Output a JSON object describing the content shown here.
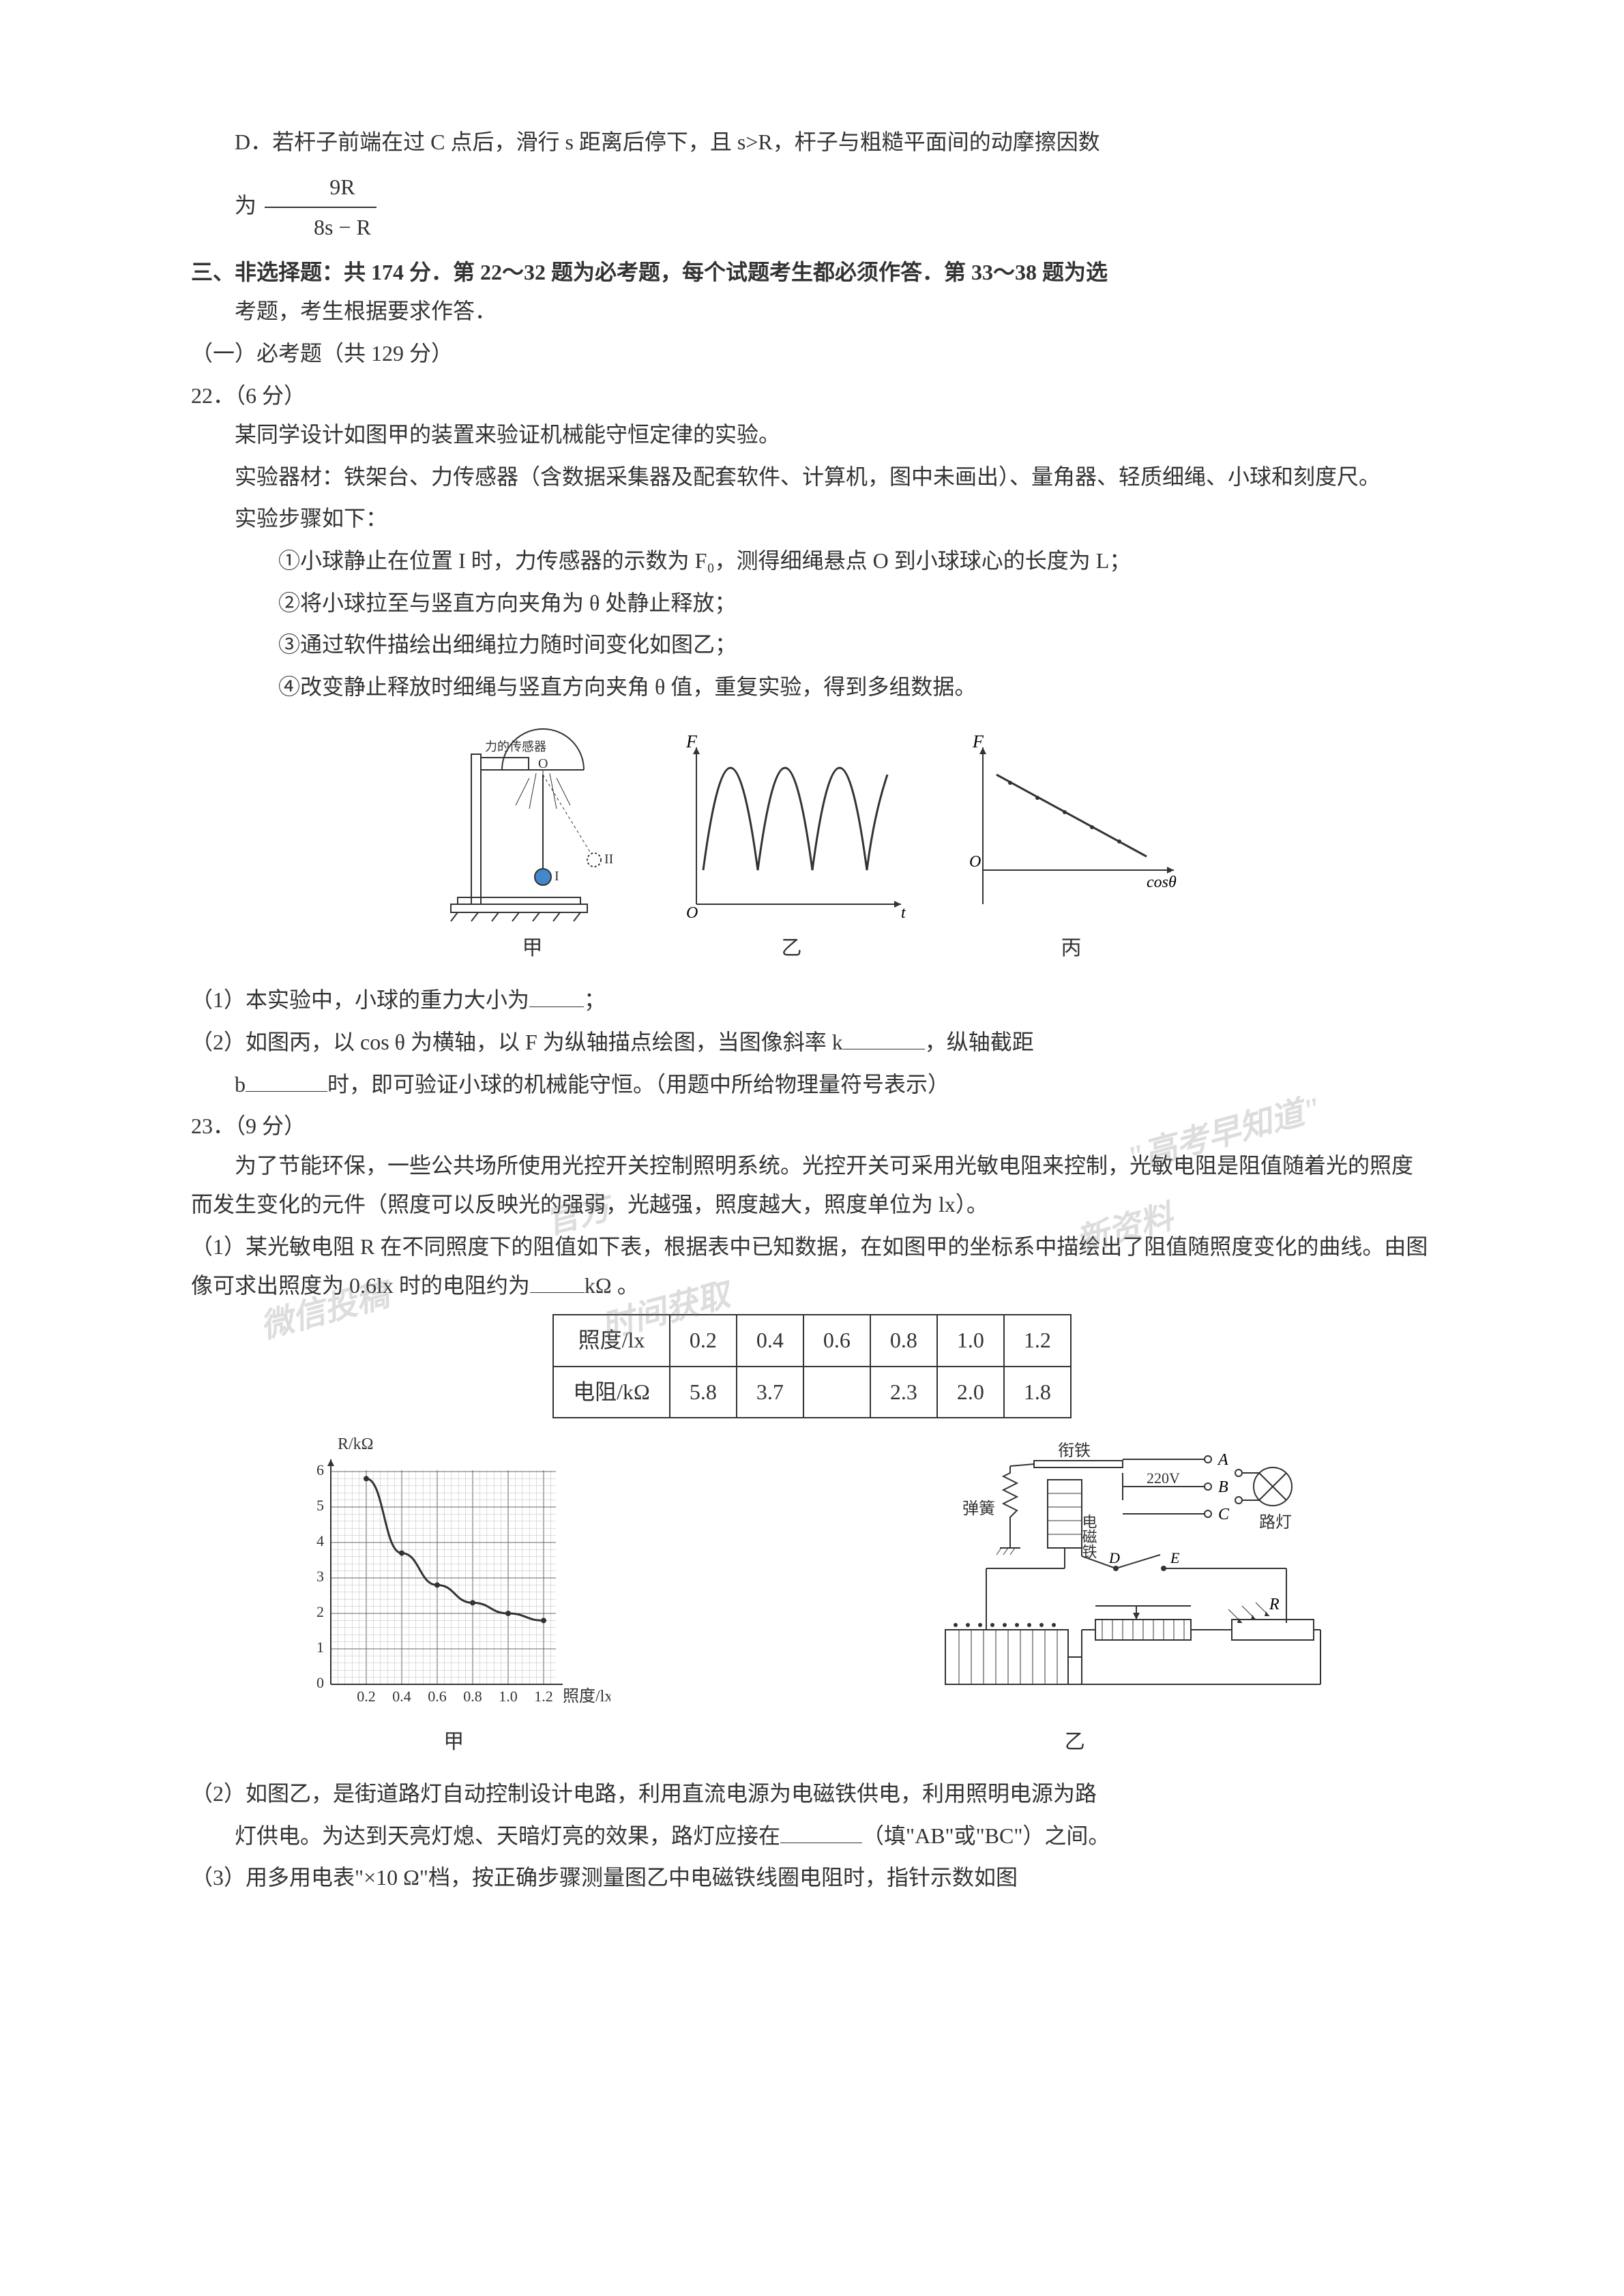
{
  "optionD": {
    "line1": "D．若杆子前端在过 C 点后，滑行 s 距离后停下，且 s>R，杆子与粗糙平面间的动摩擦因数",
    "line2_prefix": "为",
    "frac_num": "9R",
    "frac_den": "8s − R"
  },
  "section3": {
    "line1": "三、非选择题：共 174 分．第 22～32 题为必考题，每个试题考生都必须作答．第 33～38 题为选",
    "line2": "考题，考生根据要求作答．",
    "subheader": "（一）必考题（共 129 分）"
  },
  "q22": {
    "num": "22．（6 分）",
    "p1": "某同学设计如图甲的装置来验证机械能守恒定律的实验。",
    "p2_a": "实验器材：铁架台、力传感器（含数据采集器及配套软件、计算机，图中未画出）、量角器、轻质细绳、小球和刻度尺。",
    "p3": "实验步骤如下：",
    "s1": "①小球静止在位置 I 时，力传感器的示数为 F₀，测得细绳悬点 O 到小球球心的长度为 L；",
    "s2": "②将小球拉至与竖直方向夹角为 θ 处静止释放；",
    "s3": "③通过软件描绘出细绳拉力随时间变化如图乙；",
    "s4": "④改变静止释放时细绳与竖直方向夹角 θ 值，重复实验，得到多组数据。",
    "sub1": "（1）本实验中，小球的重力大小为",
    "sub1_suffix": "；",
    "sub2_a": "（2）如图丙，以 cos θ 为横轴，以 F 为纵轴描点绘图，当图像斜率 k",
    "sub2_b": "，纵轴截距",
    "sub2_line2_a": "b",
    "sub2_line2_b": "时，即可验证小球的机械能守恒。（用题中所给物理量符号表示）",
    "fig_jia_label": "甲",
    "fig_yi_label": "乙",
    "fig_bing_label": "丙",
    "fig_force_label": "力的传感器",
    "axis_F": "F",
    "axis_t": "t",
    "axis_O": "O",
    "axis_cos": "cosθ"
  },
  "q23": {
    "num": "23．（9 分）",
    "p1": "为了节能环保，一些公共场所使用光控开关控制照明系统。光控开关可采用光敏电阻来控制，光敏电阻是阻值随着光的照度而发生变化的元件（照度可以反映光的强弱，光越强，照度越大，照度单位为 lx）。",
    "sub1_a": "（1）某光敏电阻 R 在不同照度下的阻值如下表，根据表中已知数据，在如图甲的坐标系中描绘出了阻值随照度变化的曲线。由图像可求出照度为 0.6lx 时的电阻约为",
    "sub1_b": "kΩ 。",
    "table": {
      "headers": [
        "照度/lx",
        "0.2",
        "0.4",
        "0.6",
        "0.8",
        "1.0",
        "1.2"
      ],
      "row2": [
        "电阻/kΩ",
        "5.8",
        "3.7",
        "",
        "2.3",
        "2.0",
        "1.8"
      ]
    },
    "chart": {
      "ylabel": "R/kΩ",
      "xlabel": "照度/lx",
      "yticks": [
        "0",
        "1",
        "2",
        "3",
        "4",
        "5",
        "6"
      ],
      "xticks": [
        "0.2",
        "0.4",
        "0.6",
        "0.8",
        "1.0",
        "1.2"
      ],
      "fig_jia_label": "甲",
      "fig_yi_label": "乙",
      "data_points": [
        {
          "x": 0.2,
          "y": 5.8
        },
        {
          "x": 0.4,
          "y": 3.7
        },
        {
          "x": 0.6,
          "y": 2.8
        },
        {
          "x": 0.8,
          "y": 2.3
        },
        {
          "x": 1.0,
          "y": 2.0
        },
        {
          "x": 1.2,
          "y": 1.8
        }
      ],
      "grid_color": "#999999",
      "line_color": "#333333"
    },
    "circuit": {
      "labels": {
        "A": "A",
        "B": "B",
        "C": "C",
        "D": "D",
        "E": "E",
        "R": "R",
        "voltage": "220V",
        "lamp": "路灯",
        "iron": "衔铁",
        "spring": "弹簧",
        "electromagnet": "电磁铁"
      }
    },
    "sub2_a": "（2）如图乙，是街道路灯自动控制设计电路，利用直流电源为电磁铁供电，利用照明电源为路",
    "sub2_line2_a": "灯供电。为达到天亮灯熄、天暗灯亮的效果，路灯应接在",
    "sub2_line2_b": "（填\"AB\"或\"BC\"）之间。",
    "sub3": "（3）用多用电表\"×10 Ω\"档，按正确步骤测量图乙中电磁铁线圈电阻时，指针示数如图"
  },
  "watermarks": {
    "w1": "\"高考早知道\"",
    "w2": "官方",
    "w3": "新资料",
    "w4": "微信投稿",
    "w5": "时间获取"
  }
}
